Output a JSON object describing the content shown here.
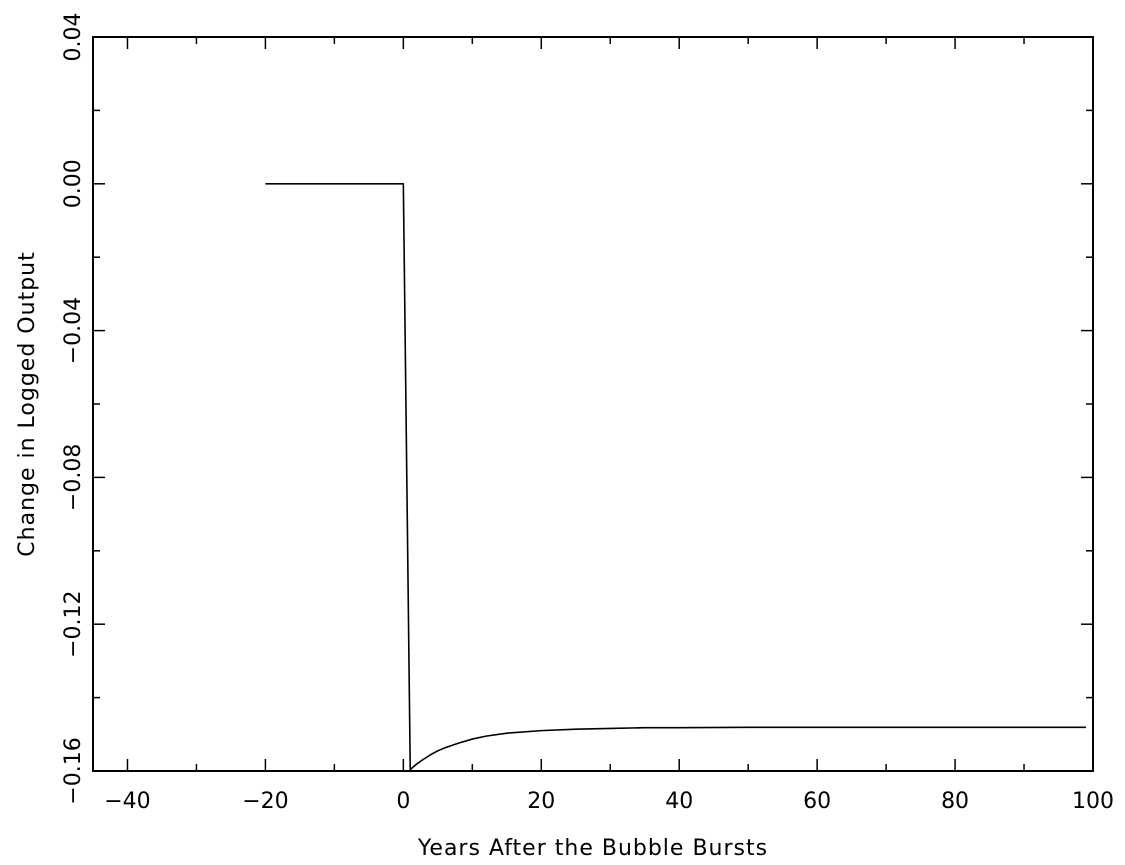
{
  "chart_data": {
    "type": "line",
    "title": "",
    "xlabel": "Years After the Bubble Bursts",
    "ylabel": "Change in Logged Output",
    "xlim": [
      -45,
      100
    ],
    "ylim": [
      -0.16,
      0.04
    ],
    "x_ticks": [
      -40,
      -20,
      0,
      20,
      40,
      60,
      80,
      100
    ],
    "x_tick_labels": [
      "−40",
      "−20",
      "0",
      "20",
      "40",
      "60",
      "80",
      "100"
    ],
    "y_ticks": [
      -0.16,
      -0.12,
      -0.08,
      -0.04,
      0.0,
      0.04
    ],
    "y_tick_labels": [
      "−0.16",
      "−0.12",
      "−0.08",
      "−0.04",
      "0.00",
      "0.04"
    ],
    "grid": false,
    "series": [
      {
        "color": "#000000",
        "x": [
          -20,
          -10,
          0,
          1,
          2,
          3,
          4,
          5,
          6,
          8,
          10,
          12,
          15,
          20,
          25,
          30,
          35,
          40,
          50,
          60,
          70,
          80,
          90,
          99
        ],
        "y": [
          0.0,
          0.0,
          0.0,
          -0.1596,
          -0.158,
          -0.1567,
          -0.1555,
          -0.1545,
          -0.1537,
          -0.1524,
          -0.1513,
          -0.1505,
          -0.1497,
          -0.149,
          -0.1486,
          -0.1484,
          -0.1482,
          -0.1482,
          -0.1481,
          -0.1481,
          -0.1481,
          -0.1481,
          -0.1481,
          -0.1481
        ]
      }
    ]
  }
}
